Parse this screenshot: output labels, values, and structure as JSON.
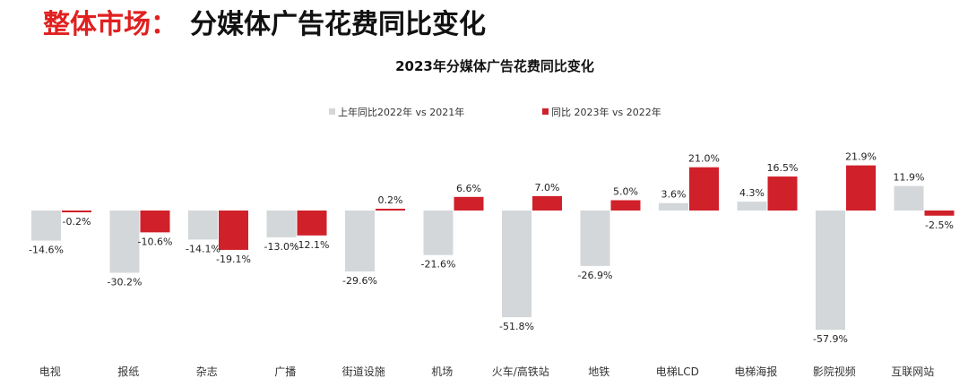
{
  "header": {
    "prefix": "整体市场：",
    "title": "分媒体广告花费同比变化"
  },
  "colors": {
    "series_2022": "#d3d7d9",
    "series_2023": "#d0202a",
    "header_accent": "#e02020"
  },
  "chart_data": {
    "type": "bar",
    "title": "2023年分媒体广告花费同比变化",
    "xlabel": "",
    "ylabel": "",
    "ylim": [
      -60,
      25
    ],
    "grid": false,
    "legend_position": "top",
    "categories": [
      "电视",
      "报纸",
      "杂志",
      "广播",
      "街道设施",
      "机场",
      "火车/高铁站",
      "地铁",
      "电梯LCD",
      "电梯海报",
      "影院视频",
      "互联网站"
    ],
    "series": [
      {
        "name": "上年同比2022年 vs 2021年",
        "values": [
          -14.6,
          -30.2,
          -14.1,
          -13.0,
          -29.6,
          -21.6,
          -51.8,
          -26.9,
          3.6,
          4.3,
          -57.9,
          11.9
        ],
        "labels": [
          "-14.6%",
          "-30.2%",
          "-14.1%",
          "-13.0%",
          "-29.6%",
          "-21.6%",
          "-51.8%",
          "-26.9%",
          "3.6%",
          "4.3%",
          "-57.9%",
          "11.9%"
        ]
      },
      {
        "name": "同比 2023年 vs 2022年",
        "values": [
          -0.2,
          -10.6,
          -19.1,
          -12.1,
          0.2,
          6.6,
          7.0,
          5.0,
          21.0,
          16.5,
          21.9,
          -2.5
        ],
        "labels": [
          "-0.2%",
          "-10.6%",
          "-19.1%",
          "-12.1%",
          "0.2%",
          "6.6%",
          "7.0%",
          "5.0%",
          "21.0%",
          "16.5%",
          "21.9%",
          "-2.5%"
        ]
      }
    ]
  }
}
